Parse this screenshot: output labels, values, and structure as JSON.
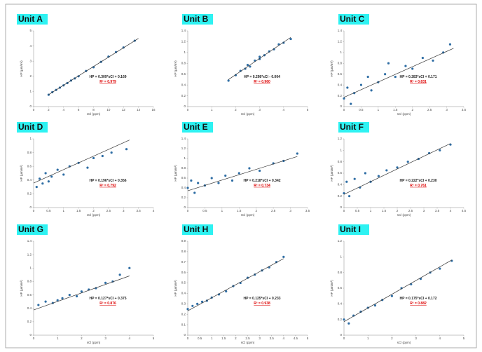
{
  "chart_data": [
    {
      "type": "scatter",
      "title": "Unit A",
      "x_label": "sCl (ppm)",
      "y_label": "HP (µm/m²)",
      "equation": "HP = 0.309*sCl + 0.169",
      "r2": "R² = 0.979",
      "xlim": [
        0,
        16
      ],
      "xticks": [
        0,
        2,
        4,
        6,
        8,
        10,
        12,
        14,
        16
      ],
      "ylim": [
        0,
        5
      ],
      "yticks": [
        0,
        1,
        2,
        3,
        4,
        5
      ],
      "color": "#2e6da4",
      "fit_color": "#333333",
      "x": [
        2,
        2.5,
        3,
        3.5,
        4,
        4.5,
        5,
        5.5,
        6,
        7,
        8,
        9,
        10,
        11,
        12,
        13.5
      ],
      "y": [
        0.78,
        0.95,
        1.1,
        1.25,
        1.4,
        1.55,
        1.72,
        1.86,
        2.0,
        2.35,
        2.6,
        2.95,
        3.3,
        3.6,
        3.9,
        4.35
      ],
      "fit": {
        "x": [
          2,
          14
        ],
        "y": [
          0.79,
          4.5
        ]
      }
    },
    {
      "type": "scatter",
      "title": "Unit B",
      "x_label": "sCl (ppm)",
      "y_label": "HP (µm/m²)",
      "equation": "HP = 0.298*sCl - 0.004",
      "r2": "R² = 0.960",
      "xlim": [
        0,
        5
      ],
      "xticks": [
        0,
        1,
        2,
        3,
        4,
        5
      ],
      "ylim": [
        0,
        1.4
      ],
      "yticks": [
        0,
        0.2,
        0.4,
        0.6,
        0.8,
        1,
        1.2,
        1.4
      ],
      "color": "#2e6da4",
      "fit_color": "#333333",
      "x": [
        1.7,
        2,
        2.2,
        2.4,
        2.5,
        2.6,
        2.8,
        3,
        3,
        3.2,
        3.4,
        3.6,
        3.8,
        4,
        4.3
      ],
      "y": [
        0.48,
        0.58,
        0.66,
        0.7,
        0.77,
        0.74,
        0.85,
        0.88,
        0.92,
        0.95,
        1.02,
        1.06,
        1.15,
        1.18,
        1.25
      ],
      "fit": {
        "x": [
          1.7,
          4.3
        ],
        "y": [
          0.5,
          1.28
        ]
      }
    },
    {
      "type": "scatter",
      "title": "Unit C",
      "x_label": "sCl (ppm)",
      "y_label": "HP (µm/m²)",
      "equation": "HP = 0.283*sCl + 0.171",
      "r2": "R² = 0.831",
      "xlim": [
        0,
        3.5
      ],
      "xticks": [
        0,
        0.5,
        1,
        1.5,
        2,
        2.5,
        3,
        3.5
      ],
      "ylim": [
        0,
        1.4
      ],
      "yticks": [
        0,
        0.2,
        0.4,
        0.6,
        0.8,
        1,
        1.2,
        1.4
      ],
      "color": "#2e6da4",
      "fit_color": "#333333",
      "x": [
        0,
        0.1,
        0.3,
        0.5,
        0.7,
        1,
        1.2,
        1.5,
        1.8,
        2,
        2.3,
        2.6,
        2.9,
        3.1,
        0.2,
        0.8,
        1.3
      ],
      "y": [
        0.15,
        0.35,
        0.25,
        0.4,
        0.55,
        0.45,
        0.6,
        0.55,
        0.75,
        0.7,
        0.9,
        0.85,
        1.0,
        1.15,
        0.05,
        0.3,
        0.8
      ],
      "fit": {
        "x": [
          0,
          3.2
        ],
        "y": [
          0.171,
          1.077
        ]
      }
    },
    {
      "type": "scatter",
      "title": "Unit D",
      "x_label": "sCl (ppm)",
      "y_label": "HP (µm/m²)",
      "equation": "HP = 0.196*sCl + 0.356",
      "r2": "R² = 0.792",
      "xlim": [
        0,
        4
      ],
      "xticks": [
        0,
        0.5,
        1,
        1.5,
        2,
        2.5,
        3,
        3.5,
        4
      ],
      "ylim": [
        0,
        1
      ],
      "yticks": [
        0,
        0.2,
        0.4,
        0.6,
        0.8,
        1
      ],
      "color": "#2e6da4",
      "fit_color": "#333333",
      "x": [
        0.1,
        0.2,
        0.3,
        0.4,
        0.5,
        0.6,
        0.8,
        1,
        1.2,
        1.5,
        1.8,
        2,
        2.3,
        2.6,
        3.1
      ],
      "y": [
        0.3,
        0.42,
        0.35,
        0.5,
        0.38,
        0.45,
        0.55,
        0.48,
        0.6,
        0.65,
        0.58,
        0.72,
        0.75,
        0.8,
        0.85
      ],
      "fit": {
        "x": [
          0,
          3.2
        ],
        "y": [
          0.356,
          0.983
        ]
      }
    },
    {
      "type": "scatter",
      "title": "Unit E",
      "x_label": "sCl (ppm)",
      "y_label": "HP (µm/m²)",
      "equation": "HP = 0.218*sCl + 0.342",
      "r2": "R² = 0.734",
      "xlim": [
        0,
        3.5
      ],
      "xticks": [
        0,
        0.5,
        1,
        1.5,
        2,
        2.5,
        3,
        3.5
      ],
      "ylim": [
        0,
        1.4
      ],
      "yticks": [
        0,
        0.2,
        0.4,
        0.6,
        0.8,
        1,
        1.2,
        1.4
      ],
      "color": "#2e6da4",
      "fit_color": "#333333",
      "x": [
        0,
        0.1,
        0.2,
        0.3,
        0.5,
        0.7,
        0.9,
        1.1,
        1.3,
        1.5,
        1.8,
        2.1,
        2.5,
        2.8,
        3.2
      ],
      "y": [
        0.4,
        0.55,
        0.3,
        0.5,
        0.45,
        0.6,
        0.5,
        0.65,
        0.55,
        0.7,
        0.8,
        0.75,
        0.9,
        0.95,
        1.1
      ],
      "fit": {
        "x": [
          0,
          3.2
        ],
        "y": [
          0.342,
          1.04
        ]
      }
    },
    {
      "type": "scatter",
      "title": "Unit F",
      "x_label": "sCl (ppm)",
      "y_label": "HP (µm/m²)",
      "equation": "HP = 0.222*sCl + 0.230",
      "r2": "R² = 0.761",
      "xlim": [
        0,
        4.5
      ],
      "xticks": [
        0,
        0.5,
        1,
        1.5,
        2,
        2.5,
        3,
        3.5,
        4,
        4.5
      ],
      "ylim": [
        0,
        1.2
      ],
      "yticks": [
        0,
        0.2,
        0.4,
        0.6,
        0.8,
        1,
        1.2
      ],
      "color": "#2e6da4",
      "fit_color": "#333333",
      "x": [
        0,
        0.1,
        0.2,
        0.4,
        0.6,
        0.8,
        1,
        1.3,
        1.6,
        2,
        2.4,
        2.8,
        3.2,
        3.6,
        4
      ],
      "y": [
        0.25,
        0.45,
        0.2,
        0.5,
        0.35,
        0.6,
        0.45,
        0.55,
        0.65,
        0.7,
        0.8,
        0.85,
        0.95,
        1.0,
        1.1
      ],
      "fit": {
        "x": [
          0,
          4
        ],
        "y": [
          0.23,
          1.118
        ]
      }
    },
    {
      "type": "scatter",
      "title": "Unit G",
      "x_label": "sCl (ppm)",
      "y_label": "HP (µm/m²)",
      "equation": "HP = 0.127*sCl + 0.375",
      "r2": "R² = 0.876",
      "xlim": [
        0,
        5
      ],
      "xticks": [
        0,
        1,
        2,
        3,
        4,
        5
      ],
      "ylim": [
        0,
        1.4
      ],
      "yticks": [
        0,
        0.2,
        0.4,
        0.6,
        0.8,
        1,
        1.2,
        1.4
      ],
      "color": "#2e6da4",
      "fit_color": "#333333",
      "x": [
        0.2,
        0.5,
        0.8,
        1,
        1.2,
        1.5,
        1.8,
        2,
        2.3,
        2.6,
        3,
        3.3,
        3.6,
        4
      ],
      "y": [
        0.45,
        0.5,
        0.48,
        0.52,
        0.55,
        0.6,
        0.58,
        0.65,
        0.68,
        0.7,
        0.78,
        0.8,
        0.9,
        1.0
      ],
      "fit": {
        "x": [
          0,
          4
        ],
        "y": [
          0.375,
          0.883
        ]
      }
    },
    {
      "type": "scatter",
      "title": "Unit H",
      "x_label": "sCl (ppm)",
      "y_label": "HP (µm/m²)",
      "equation": "HP = 0.125*sCl + 0.233",
      "r2": "R² = 0.938",
      "xlim": [
        0,
        5
      ],
      "xticks": [
        0,
        0.5,
        1,
        1.5,
        2,
        2.5,
        3,
        3.5,
        4,
        4.5,
        5
      ],
      "ylim": [
        0,
        0.9
      ],
      "yticks": [
        0,
        0.1,
        0.2,
        0.3,
        0.4,
        0.5,
        0.6,
        0.7,
        0.8,
        0.9
      ],
      "color": "#2e6da4",
      "fit_color": "#333333",
      "x": [
        0,
        0.2,
        0.4,
        0.6,
        0.8,
        1,
        1.3,
        1.6,
        1.9,
        2.2,
        2.5,
        2.8,
        3.1,
        3.4,
        3.7,
        4
      ],
      "y": [
        0.25,
        0.28,
        0.3,
        0.32,
        0.33,
        0.36,
        0.39,
        0.42,
        0.47,
        0.5,
        0.55,
        0.58,
        0.62,
        0.65,
        0.7,
        0.75
      ],
      "fit": {
        "x": [
          0,
          4
        ],
        "y": [
          0.233,
          0.733
        ]
      }
    },
    {
      "type": "scatter",
      "title": "Unit I",
      "x_label": "sCl (ppm)",
      "y_label": "HP (µm/m²)",
      "equation": "HP = 0.175*sCl + 0.172",
      "r2": "R² = 0.882",
      "xlim": [
        0,
        5
      ],
      "xticks": [
        0,
        1,
        2,
        3,
        4,
        5
      ],
      "ylim": [
        0,
        1.2
      ],
      "yticks": [
        0,
        0.2,
        0.4,
        0.6,
        0.8,
        1,
        1.2
      ],
      "color": "#2e6da4",
      "fit_color": "#333333",
      "x": [
        0,
        0.2,
        0.4,
        0.7,
        1,
        1.3,
        1.6,
        2,
        2.4,
        2.8,
        3.2,
        3.6,
        4,
        4.5
      ],
      "y": [
        0.2,
        0.15,
        0.25,
        0.3,
        0.35,
        0.38,
        0.45,
        0.5,
        0.6,
        0.65,
        0.72,
        0.8,
        0.85,
        0.95
      ],
      "fit": {
        "x": [
          0,
          4.5
        ],
        "y": [
          0.172,
          0.96
        ]
      }
    }
  ]
}
